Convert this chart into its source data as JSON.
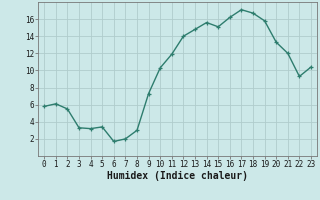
{
  "x": [
    0,
    1,
    2,
    3,
    4,
    5,
    6,
    7,
    8,
    9,
    10,
    11,
    12,
    13,
    14,
    15,
    16,
    17,
    18,
    19,
    20,
    21,
    22,
    23
  ],
  "y": [
    5.8,
    6.1,
    5.5,
    3.3,
    3.2,
    3.4,
    1.7,
    2.0,
    3.0,
    7.3,
    10.3,
    11.9,
    14.0,
    14.8,
    15.6,
    15.1,
    16.2,
    17.1,
    16.7,
    15.8,
    13.3,
    12.0,
    9.3,
    10.4
  ],
  "line_color": "#2e7d6e",
  "marker": "+",
  "marker_size": 3,
  "xlabel": "Humidex (Indice chaleur)",
  "bg_color": "#cce8e8",
  "grid_color": "#b0cccc",
  "xlim": [
    -0.5,
    23.5
  ],
  "ylim": [
    0,
    18
  ],
  "yticks": [
    2,
    4,
    6,
    8,
    10,
    12,
    14,
    16
  ],
  "xtick_labels": [
    "0",
    "1",
    "2",
    "3",
    "4",
    "5",
    "6",
    "7",
    "8",
    "9",
    "10",
    "11",
    "12",
    "13",
    "14",
    "15",
    "16",
    "17",
    "18",
    "19",
    "20",
    "21",
    "22",
    "23"
  ],
  "tick_fontsize": 5.5,
  "xlabel_fontsize": 7,
  "linewidth": 1.0,
  "marker_edge_width": 0.9
}
